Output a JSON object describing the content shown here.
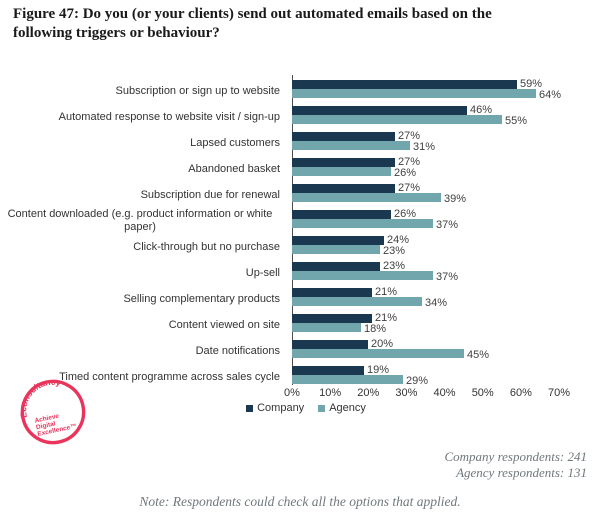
{
  "title_lines": [
    "Figure 47: Do you (or your clients) send out automated emails based on the",
    "following triggers or behaviour?"
  ],
  "chart_data": {
    "type": "bar",
    "orientation": "horizontal",
    "title": "Figure 47: Do you (or your clients) send out automated emails based on the following triggers or behaviour?",
    "categories": [
      "Subscription or sign up to website",
      "Automated response to website visit / sign-up",
      "Lapsed customers",
      "Abandoned basket",
      "Subscription due for renewal",
      "Content downloaded (e.g. product information or white paper)",
      "Click-through but no purchase",
      "Up-sell",
      "Selling complementary products",
      "Content viewed on site",
      "Date notifications",
      "Timed content programme across sales cycle"
    ],
    "series": [
      {
        "name": "Company",
        "color": "#1a3850",
        "values": [
          59,
          46,
          27,
          27,
          27,
          26,
          24,
          23,
          21,
          21,
          20,
          19
        ]
      },
      {
        "name": "Agency",
        "color": "#71a6ad",
        "values": [
          64,
          55,
          31,
          26,
          39,
          37,
          23,
          37,
          34,
          18,
          45,
          29
        ]
      }
    ],
    "value_suffix": "%",
    "xlim": [
      0,
      70
    ],
    "ticks": [
      "0%",
      "10%",
      "20%",
      "30%",
      "40%",
      "50%",
      "60%",
      "70%"
    ],
    "grid": false,
    "legend_position": "bottom"
  },
  "footer": {
    "company_respondents": "Company respondents: 241",
    "agency_respondents": "Agency respondents: 131",
    "note": "Note: Respondents could check all the options that applied."
  },
  "logo": {
    "brand": "Econsultancy",
    "tagline_lines": [
      "Achieve",
      "Digital",
      "Excellence™"
    ],
    "color": "#e9345c"
  }
}
